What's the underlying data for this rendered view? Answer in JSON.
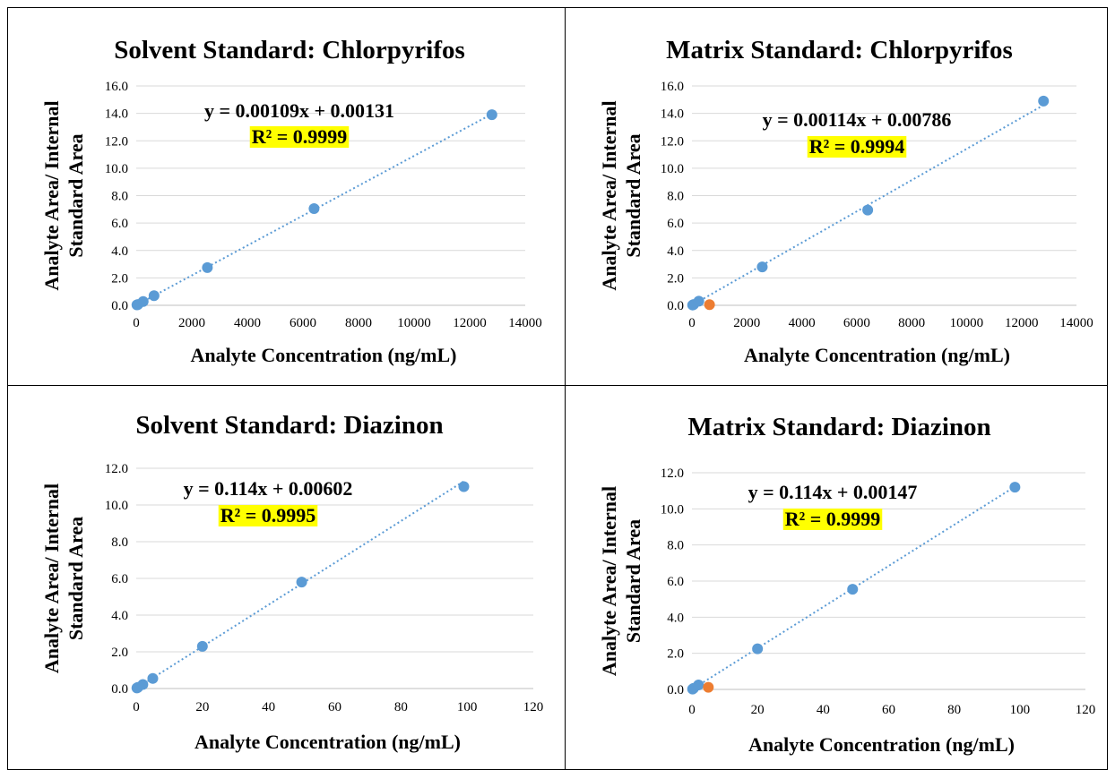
{
  "colors": {
    "points": "#5b9bd5",
    "outlier": "#ed7d31",
    "trendline": "#5b9bd5",
    "grid": "#d9d9d9",
    "highlight": "#ffff00"
  },
  "chart_data": [
    {
      "type": "scatter",
      "title": "Solvent Standard:  Chlorpyrifos",
      "xlabel": "Analyte Concentration (ng/mL)",
      "ylabel": [
        "Analyte Area/ Internal",
        "Standard Area"
      ],
      "xlim": [
        0,
        14000
      ],
      "ylim": [
        0,
        16
      ],
      "xticks": [
        0,
        2000,
        4000,
        6000,
        8000,
        10000,
        12000,
        14000
      ],
      "xtick_labels": [
        "0",
        "2000",
        "4000",
        "6000",
        "8000",
        "10000",
        "12000",
        "14000"
      ],
      "yticks": [
        0,
        2,
        4,
        6,
        8,
        10,
        12,
        14,
        16
      ],
      "ytick_labels": [
        "0.0",
        "2.0",
        "4.0",
        "6.0",
        "8.0",
        "10.0",
        "12.0",
        "14.0",
        "16.0"
      ],
      "grid": "horizontal",
      "series": [
        {
          "x": [
            25,
            60,
            250,
            640,
            2560,
            6400,
            12800
          ],
          "y": [
            0.03,
            0.06,
            0.28,
            0.7,
            2.75,
            7.05,
            13.9
          ],
          "color": "#5b9bd5"
        }
      ],
      "trendline": {
        "slope": 0.00109,
        "intercept": 0.00131,
        "x_range": [
          0,
          12800
        ]
      },
      "equation": "y = 0.00109x + 0.00131",
      "r_squared": "R² = 0.9999"
    },
    {
      "type": "scatter",
      "title": "Matrix Standard:  Chlorpyrifos",
      "xlabel": "Analyte Concentration (ng/mL)",
      "ylabel": [
        "Analyte Area/ Internal",
        "Standard Area"
      ],
      "xlim": [
        0,
        14000
      ],
      "ylim": [
        0,
        16
      ],
      "xticks": [
        0,
        2000,
        4000,
        6000,
        8000,
        10000,
        12000,
        14000
      ],
      "xtick_labels": [
        "0",
        "2000",
        "4000",
        "6000",
        "8000",
        "10000",
        "12000",
        "14000"
      ],
      "yticks": [
        0,
        2,
        4,
        6,
        8,
        10,
        12,
        14,
        16
      ],
      "ytick_labels": [
        "0.0",
        "2.0",
        "4.0",
        "6.0",
        "8.0",
        "10.0",
        "12.0",
        "14.0",
        "16.0"
      ],
      "grid": "horizontal",
      "series": [
        {
          "x": [
            25,
            60,
            250,
            2560,
            6400,
            12800
          ],
          "y": [
            0.02,
            0.06,
            0.3,
            2.8,
            6.95,
            14.9
          ],
          "color": "#5b9bd5"
        },
        {
          "x": [
            640
          ],
          "y": [
            0.05
          ],
          "color": "#ed7d31"
        }
      ],
      "trendline": {
        "slope": 0.00114,
        "intercept": 0.00786,
        "x_range": [
          0,
          12800
        ]
      },
      "equation": "y = 0.00114x + 0.00786",
      "r_squared": "R² = 0.9994"
    },
    {
      "type": "scatter",
      "title": "Solvent Standard:  Diazinon",
      "xlabel": "Analyte Concentration (ng/mL)",
      "ylabel": [
        "Analyte Area/ Internal",
        "Standard Area"
      ],
      "xlim": [
        0,
        120
      ],
      "ylim": [
        0,
        12
      ],
      "xticks": [
        0,
        20,
        40,
        60,
        80,
        100,
        120
      ],
      "xtick_labels": [
        "0",
        "20",
        "40",
        "60",
        "80",
        "100",
        "120"
      ],
      "yticks": [
        0,
        2,
        4,
        6,
        8,
        10,
        12
      ],
      "ytick_labels": [
        "0.0",
        "2.0",
        "4.0",
        "6.0",
        "8.0",
        "10.0",
        "12.0"
      ],
      "grid": "horizontal",
      "series": [
        {
          "x": [
            0.2,
            0.5,
            2,
            5,
            20,
            50,
            99
          ],
          "y": [
            0.03,
            0.06,
            0.22,
            0.55,
            2.3,
            5.8,
            11.0
          ],
          "color": "#5b9bd5"
        }
      ],
      "trendline": {
        "slope": 0.114,
        "intercept": 0.00602,
        "x_range": [
          0,
          99
        ]
      },
      "equation": "y = 0.114x + 0.00602",
      "r_squared": "R² = 0.9995"
    },
    {
      "type": "scatter",
      "title": "Matrix Standard:  Diazinon",
      "xlabel": "Analyte Concentration (ng/mL)",
      "ylabel": [
        "Analyte Area/ Internal",
        "Standard Area"
      ],
      "xlim": [
        0,
        120
      ],
      "ylim": [
        0,
        12
      ],
      "xticks": [
        0,
        20,
        40,
        60,
        80,
        100,
        120
      ],
      "xtick_labels": [
        "0",
        "20",
        "40",
        "60",
        "80",
        "100",
        "120"
      ],
      "yticks": [
        0,
        2,
        4,
        6,
        8,
        10,
        12
      ],
      "ytick_labels": [
        "0.0",
        "2.0",
        "4.0",
        "6.0",
        "8.0",
        "10.0",
        "12.0"
      ],
      "grid": "horizontal",
      "series": [
        {
          "x": [
            0.2,
            0.5,
            2,
            20,
            49,
            98.5
          ],
          "y": [
            0.02,
            0.06,
            0.25,
            2.25,
            5.55,
            11.2
          ],
          "color": "#5b9bd5"
        },
        {
          "x": [
            5
          ],
          "y": [
            0.12
          ],
          "color": "#ed7d31"
        }
      ],
      "trendline": {
        "slope": 0.114,
        "intercept": 0.00147,
        "x_range": [
          0,
          98.5
        ]
      },
      "equation": "y = 0.114x + 0.00147",
      "r_squared": "R² = 0.9999"
    }
  ]
}
